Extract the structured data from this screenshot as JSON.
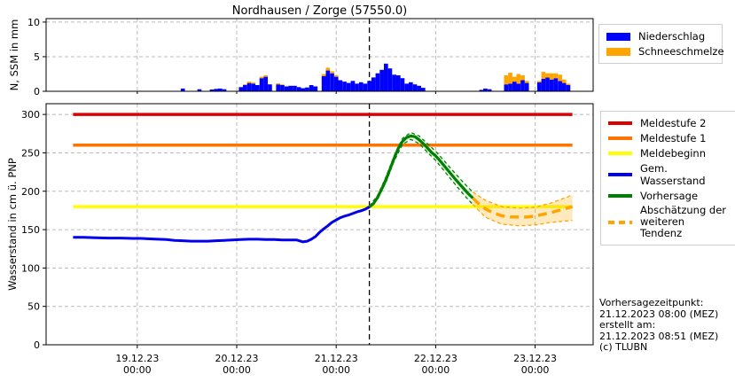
{
  "title": "Nordhausen / Zorge (57550.0)",
  "colors": {
    "niederschlag": "#0000ff",
    "schneeschmelze": "#ffa500",
    "meldestufe2": "#dd0000",
    "meldestufe1": "#ff7300",
    "meldebeginn": "#ffff00",
    "gem_wasserstand": "#0000ee",
    "vorhersage": "#008000",
    "tendenz": "#ffa500",
    "grid": "#bbbbbb",
    "forecast_vline": "#000000"
  },
  "legend_top": {
    "items": [
      {
        "key": "niederschlag",
        "label": "Niederschlag",
        "color": "#0000ff"
      },
      {
        "key": "schneeschmelze",
        "label": "Schneeschmelze",
        "color": "#ffa500"
      }
    ]
  },
  "legend_bottom": {
    "items": [
      {
        "key": "meldestufe2",
        "label": "Meldestufe 2",
        "color": "#dd0000"
      },
      {
        "key": "meldestufe1",
        "label": "Meldestufe 1",
        "color": "#ff7300"
      },
      {
        "key": "meldebeginn",
        "label": "Meldebeginn",
        "color": "#ffff00"
      },
      {
        "key": "gem_wasserstand",
        "label": "Gem. Wasserstand",
        "color": "#0000ee"
      },
      {
        "key": "vorhersage",
        "label": "Vorhersage",
        "color": "#008000"
      },
      {
        "key": "tendenz",
        "label_line1": "Abschätzung der",
        "label_line2": "weiteren Tendenz",
        "color": "#ffa500"
      }
    ]
  },
  "footer": {
    "lines": [
      "Vorhersagezeitpunkt:",
      "21.12.2023 08:00 (MEZ)",
      "erstellt am:",
      "21.12.2023 08:51 (MEZ)",
      "(c) TLUBN"
    ]
  },
  "chart_data": [
    {
      "type": "bar",
      "title": "",
      "ylabel": "N, SSM in mm",
      "ylim": [
        0,
        10.5
      ],
      "yticks": [
        0,
        5,
        10
      ],
      "x_unit": "hours since 19.12.23 00:00",
      "xlim": [
        -22,
        110
      ],
      "grid": true,
      "stacked": true,
      "forecast_time_x": 56,
      "series": [
        {
          "name": "Niederschlag",
          "color": "#0000ff"
        },
        {
          "name": "Schneeschmelze",
          "color": "#ffa500"
        }
      ],
      "bars": [
        [
          11,
          0.4,
          0
        ],
        [
          15,
          0.3,
          0
        ],
        [
          18,
          0.25,
          0
        ],
        [
          19,
          0.35,
          0
        ],
        [
          20,
          0.4,
          0
        ],
        [
          21,
          0.3,
          0
        ],
        [
          25,
          0.6,
          0
        ],
        [
          26,
          0.9,
          0.1
        ],
        [
          27,
          1.2,
          0.2
        ],
        [
          28,
          1.1,
          0.15
        ],
        [
          29,
          0.9,
          0
        ],
        [
          30,
          1.9,
          0.2
        ],
        [
          31,
          2.1,
          0.2
        ],
        [
          32,
          1.0,
          0
        ],
        [
          34,
          1.0,
          0.15
        ],
        [
          35,
          0.9,
          0.1
        ],
        [
          36,
          0.7,
          0
        ],
        [
          37,
          0.8,
          0
        ],
        [
          38,
          0.8,
          0
        ],
        [
          39,
          0.6,
          0
        ],
        [
          40,
          0.45,
          0
        ],
        [
          41,
          0.55,
          0
        ],
        [
          42,
          0.9,
          0
        ],
        [
          43,
          0.7,
          0
        ],
        [
          45,
          2.2,
          0.3
        ],
        [
          46,
          3.0,
          0.4
        ],
        [
          47,
          2.6,
          0.3
        ],
        [
          48,
          2.1,
          0.2
        ],
        [
          49,
          1.6,
          0
        ],
        [
          50,
          1.4,
          0
        ],
        [
          51,
          1.2,
          0
        ],
        [
          52,
          1.5,
          0
        ],
        [
          53,
          1.1,
          0
        ],
        [
          54,
          1.3,
          0
        ],
        [
          55,
          1.1,
          0
        ],
        [
          56,
          1.5,
          0
        ],
        [
          57,
          2.0,
          0
        ],
        [
          58,
          2.6,
          0
        ],
        [
          59,
          3.1,
          0
        ],
        [
          60,
          4.0,
          0
        ],
        [
          61,
          3.3,
          0
        ],
        [
          62,
          2.4,
          0
        ],
        [
          63,
          2.3,
          0
        ],
        [
          64,
          1.9,
          0
        ],
        [
          65,
          1.1,
          0
        ],
        [
          66,
          1.3,
          0
        ],
        [
          67,
          1.0,
          0
        ],
        [
          68,
          0.8,
          0
        ],
        [
          69,
          0.5,
          0
        ],
        [
          83,
          0.2,
          0
        ],
        [
          84,
          0.4,
          0
        ],
        [
          85,
          0.3,
          0
        ],
        [
          89,
          1.0,
          1.3
        ],
        [
          90,
          1.1,
          1.6
        ],
        [
          91,
          1.4,
          0.7
        ],
        [
          92,
          1.1,
          1.4
        ],
        [
          93,
          1.6,
          0.7
        ],
        [
          94,
          1.2,
          0.3
        ],
        [
          97,
          1.3,
          0.2
        ],
        [
          98,
          1.8,
          1.0
        ],
        [
          99,
          2.0,
          0.6
        ],
        [
          100,
          1.7,
          0.9
        ],
        [
          101,
          1.9,
          0.7
        ],
        [
          102,
          1.5,
          0.9
        ],
        [
          103,
          1.2,
          0.5
        ],
        [
          104,
          0.9,
          0.2
        ]
      ]
    },
    {
      "type": "line",
      "ylabel": "Wasserstand in cm ü. PNP",
      "ylim": [
        0,
        314
      ],
      "yticks": [
        0,
        50,
        100,
        150,
        200,
        250,
        300
      ],
      "x_unit": "hours since 19.12.23 00:00",
      "xlim": [
        -22,
        110
      ],
      "grid": true,
      "forecast_time_x": 56,
      "forecast_time_label": "Vorhersagezeitpunkt: 21.12.2023 08:00 (MEZ)",
      "xticks": [
        {
          "x": 0,
          "label": [
            "19.12.23",
            "00:00"
          ]
        },
        {
          "x": 24,
          "label": [
            "20.12.23",
            "00:00"
          ]
        },
        {
          "x": 48,
          "label": [
            "21.12.23",
            "00:00"
          ]
        },
        {
          "x": 72,
          "label": [
            "22.12.23",
            "00:00"
          ]
        },
        {
          "x": 96,
          "label": [
            "23.12.23",
            "00:00"
          ]
        }
      ],
      "threshold_span": [
        -15.5,
        105
      ],
      "thresholds": [
        {
          "name": "Meldestufe 2",
          "value": 300,
          "color": "#dd0000"
        },
        {
          "name": "Meldestufe 1",
          "value": 260,
          "color": "#ff7300"
        },
        {
          "name": "Meldebeginn",
          "value": 180,
          "color": "#ffff00"
        }
      ],
      "series": [
        {
          "name": "Gem. Wasserstand",
          "color": "#0000ee",
          "style": "solid",
          "points": [
            [
              -15.5,
              140
            ],
            [
              -13,
              140
            ],
            [
              -10,
              139.5
            ],
            [
              -7,
              139
            ],
            [
              -4,
              139
            ],
            [
              -1,
              138.5
            ],
            [
              1,
              138.5
            ],
            [
              3,
              138
            ],
            [
              5,
              137.5
            ],
            [
              7,
              137
            ],
            [
              9,
              136
            ],
            [
              11,
              135.5
            ],
            [
              13,
              135
            ],
            [
              15,
              135
            ],
            [
              17,
              135
            ],
            [
              19,
              135.5
            ],
            [
              21,
              136
            ],
            [
              23,
              136.5
            ],
            [
              25,
              137
            ],
            [
              27,
              137.5
            ],
            [
              29,
              137.5
            ],
            [
              31,
              137
            ],
            [
              33,
              137
            ],
            [
              35,
              136.5
            ],
            [
              37,
              136.5
            ],
            [
              38.5,
              136.5
            ],
            [
              40,
              134
            ],
            [
              41,
              135
            ],
            [
              42,
              137.5
            ],
            [
              43,
              141
            ],
            [
              44,
              146.5
            ],
            [
              45,
              151
            ],
            [
              46,
              155
            ],
            [
              47,
              159.5
            ],
            [
              48,
              162.5
            ],
            [
              49,
              165.5
            ],
            [
              50,
              167.5
            ],
            [
              51,
              169
            ],
            [
              52,
              171
            ],
            [
              53,
              173
            ],
            [
              54,
              174.5
            ],
            [
              55,
              176.5
            ],
            [
              56,
              179.5
            ]
          ]
        },
        {
          "name": "Vorhersage",
          "color": "#008000",
          "style": "solid",
          "band_fill": "rgba(0,128,0,0.08)",
          "points": [
            [
              56,
              179.5
            ],
            [
              57,
              184
            ],
            [
              58,
              192
            ],
            [
              59,
              203
            ],
            [
              60,
              215
            ],
            [
              61,
              229
            ],
            [
              62,
              243
            ],
            [
              63,
              256
            ],
            [
              64,
              265
            ],
            [
              65,
              270
            ],
            [
              66,
              272
            ],
            [
              67,
              271
            ],
            [
              68,
              267
            ],
            [
              69,
              262
            ],
            [
              70,
              256.5
            ],
            [
              71,
              250.5
            ],
            [
              72,
              246
            ],
            [
              73,
              240
            ],
            [
              74,
              233.5
            ],
            [
              75,
              227
            ],
            [
              76,
              220.5
            ],
            [
              77,
              214
            ],
            [
              78,
              208
            ],
            [
              79,
              202
            ],
            [
              80,
              196
            ],
            [
              81,
              191
            ]
          ],
          "band_upper": [
            [
              56,
              180.5
            ],
            [
              58,
              194.5
            ],
            [
              60,
              218.5
            ],
            [
              62,
              246.5
            ],
            [
              64,
              269
            ],
            [
              66,
              276.5
            ],
            [
              68,
              272
            ],
            [
              70,
              262
            ],
            [
              72,
              252
            ],
            [
              74,
              240
            ],
            [
              76,
              227.5
            ],
            [
              78,
              215.5
            ],
            [
              80,
              204
            ],
            [
              81,
              199
            ]
          ],
          "band_lower": [
            [
              56,
              178.5
            ],
            [
              58,
              189.5
            ],
            [
              60,
              211.5
            ],
            [
              62,
              239.5
            ],
            [
              64,
              261
            ],
            [
              66,
              267.5
            ],
            [
              68,
              262
            ],
            [
              70,
              251
            ],
            [
              72,
              240
            ],
            [
              74,
              227
            ],
            [
              76,
              213.5
            ],
            [
              78,
              200.5
            ],
            [
              80,
              188
            ],
            [
              81,
              183
            ]
          ]
        },
        {
          "name": "Abschätzung der weiteren Tendenz",
          "color": "#ffa500",
          "style": "dashed",
          "band_fill": "rgba(255,166,0,0.25)",
          "points": [
            [
              81,
              191
            ],
            [
              82,
              185.5
            ],
            [
              84,
              177
            ],
            [
              86,
              171.5
            ],
            [
              88,
              168
            ],
            [
              90,
              166.5
            ],
            [
              92,
              166.3
            ],
            [
              94,
              166.3
            ],
            [
              96,
              167.5
            ],
            [
              98,
              170
            ],
            [
              100,
              172.5
            ],
            [
              102,
              175.5
            ],
            [
              104,
              178.5
            ],
            [
              105,
              180
            ]
          ],
          "band_upper": [
            [
              81,
              199
            ],
            [
              84,
              188
            ],
            [
              88,
              180
            ],
            [
              92,
              178
            ],
            [
              96,
              179
            ],
            [
              100,
              185
            ],
            [
              104,
              193
            ],
            [
              105,
              195.5
            ]
          ],
          "band_lower": [
            [
              81,
              183
            ],
            [
              84,
              166
            ],
            [
              88,
              157
            ],
            [
              92,
              155
            ],
            [
              96,
              156
            ],
            [
              100,
              159.5
            ],
            [
              104,
              161.5
            ],
            [
              105,
              162
            ]
          ]
        }
      ]
    }
  ]
}
